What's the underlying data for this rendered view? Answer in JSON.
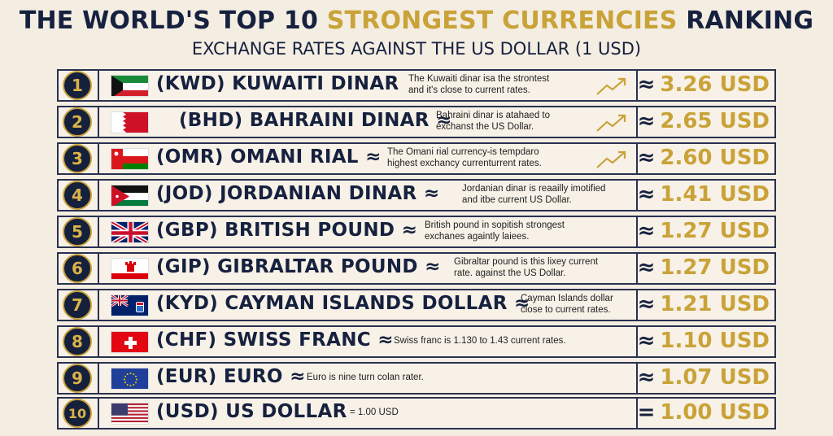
{
  "title": {
    "part1": "THE WORLD'S TOP 10",
    "part2": "STRONGEST CURRENCIES",
    "part3": "RANKING"
  },
  "subtitle": "EXCHANGE RATES AGAINST THE US DOLLAR (1 USD)",
  "colors": {
    "navy": "#16213f",
    "gold": "#c9a238",
    "background": "#f4ede2"
  },
  "rows": [
    {
      "rank": "1",
      "flag": "kuwait-flag",
      "name": "(KWD)  KUWAITI DINAR",
      "desc1": "The Kuwaiti dinar isa the strontest",
      "desc2": "and it's close to current rates.",
      "approx": "≈",
      "rate": "3.26 USD"
    },
    {
      "rank": "2",
      "flag": "bahrain-flag",
      "name": "(BHD)   BAHRAINI DINAR ≈",
      "desc1": "Bahraini dinar is atahaed to",
      "desc2": "exchanst the US Dollar.",
      "approx": "≈",
      "rate": "2.65 USD"
    },
    {
      "rank": "3",
      "flag": "oman-flag",
      "name": "(OMR)  OMANI RIAL ≈",
      "desc1": "The Omani rial currency-is tempdaro",
      "desc2": "highest exchancy currenturrent rates.",
      "approx": "≈",
      "rate": "2.60 USD"
    },
    {
      "rank": "4",
      "flag": "jordan-flag",
      "name": "(JOD)  JORDANIAN DINAR ≈",
      "desc1": "Jordanian dinar is reaailly imotified",
      "desc2": "and itbe current US Dollar.",
      "approx": "≈",
      "rate": "1.41 USD"
    },
    {
      "rank": "5",
      "flag": "uk-flag",
      "name": "(GBP)  BRITISH POUND ≈",
      "desc1": "British pound in sopitish strongest",
      "desc2": "exchanes againtly laiees.",
      "approx": "≈",
      "rate": "1.27 USD"
    },
    {
      "rank": "6",
      "flag": "gibraltar-flag",
      "name": "(GIP)  GIBRALTAR POUND ≈",
      "desc1": "Gibraltar pound is this lixey current",
      "desc2": "rate. against the US Dollar.",
      "approx": "≈",
      "rate": "1.27 USD"
    },
    {
      "rank": "7",
      "flag": "cayman-flag",
      "name": "(KYD)  CAYMAN ISLANDS DOLLAR ≈",
      "desc1": "Cayman Islands dollar",
      "desc2": "close to current rates.",
      "approx": "≈",
      "rate": "1.21 USD"
    },
    {
      "rank": "8",
      "flag": "swiss-flag",
      "name": "(CHF)  SWISS FRANC ≈",
      "desc1": "Swiss franc is 1.130 to 1.43 current rates.",
      "desc2": "",
      "approx": "≈",
      "rate": "1.10 USD"
    },
    {
      "rank": "9",
      "flag": "eu-flag",
      "name": "(EUR)  EURO ≈",
      "desc1": "Euro is nine turn colan rater.",
      "desc2": "",
      "approx": "≈",
      "rate": "1.07 USD"
    },
    {
      "rank": "10",
      "flag": "usa-flag",
      "name": "(USD)  US DOLLAR",
      "desc1": "= 1.00 USD",
      "desc2": "",
      "approx": "=",
      "rate": "1.00 USD"
    }
  ]
}
